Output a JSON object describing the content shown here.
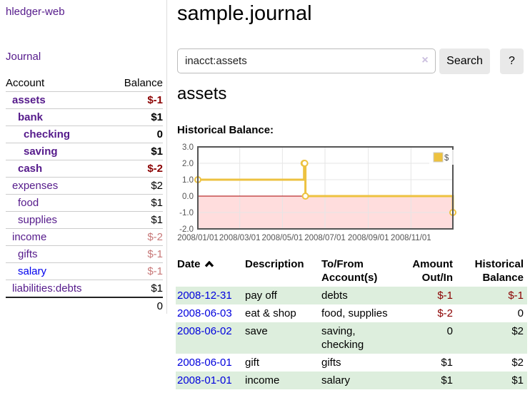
{
  "colors": {
    "accent_purple": "#551a8b",
    "link_blue": "#0000dd",
    "unvisited_link_blue": "#0000ee",
    "negative_strong": "#8b0000",
    "negative_soft": "#c87979",
    "row_stripe": "#ddeedd",
    "series_gold": "#edc240",
    "negative_region_pink": "#ffdddd",
    "zero_line_red": "#aa0000"
  },
  "app": {
    "title": "hledger-web",
    "nav_journal": "Journal"
  },
  "sidebar": {
    "table": {
      "col_account": "Account",
      "col_balance": "Balance",
      "total": "0",
      "rows": [
        {
          "label": "assets",
          "depth": 1,
          "bold": true,
          "balance": "$-1",
          "balance_color": "#8b0000"
        },
        {
          "label": "bank",
          "depth": 2,
          "bold": true,
          "balance": "$1"
        },
        {
          "label": "checking",
          "depth": 3,
          "bold": true,
          "balance": "0"
        },
        {
          "label": "saving",
          "depth": 3,
          "bold": true,
          "balance": "$1"
        },
        {
          "label": "cash",
          "depth": 2,
          "bold": true,
          "balance": "$-2",
          "balance_color": "#8b0000"
        },
        {
          "label": "expenses",
          "depth": 1,
          "bold": false,
          "balance": "$2"
        },
        {
          "label": "food",
          "depth": 2,
          "bold": false,
          "balance": "$1"
        },
        {
          "label": "supplies",
          "depth": 2,
          "bold": false,
          "balance": "$1"
        },
        {
          "label": "income",
          "depth": 1,
          "bold": false,
          "balance": "$-2",
          "balance_color": "#c87979"
        },
        {
          "label": "gifts",
          "depth": 2,
          "bold": false,
          "balance": "$-1",
          "balance_color": "#c87979"
        },
        {
          "label": "salary",
          "depth": 2,
          "bold": false,
          "link_color": "#0000ee",
          "balance": "$-1",
          "balance_color": "#c87979"
        },
        {
          "label": "liabilities:debts",
          "depth": 1,
          "bold": false,
          "balance": "$1"
        }
      ]
    }
  },
  "main": {
    "title": "sample.journal",
    "search": {
      "value": "inacct:assets",
      "clear_icon": "×",
      "search_label": "Search",
      "help_label": "?"
    },
    "account_heading": "assets",
    "chart_heading": "Historical Balance:"
  },
  "chart_data": {
    "type": "line",
    "style": "step",
    "title": "Historical Balance",
    "xlabel": "",
    "ylabel": "",
    "xlim": [
      "2008-01-01",
      "2008-12-31"
    ],
    "ylim": [
      -2,
      3
    ],
    "y_ticks": [
      3,
      2,
      1,
      0,
      -1,
      -2
    ],
    "x_ticks": [
      "2008/01/01",
      "2008/03/01",
      "2008/05/01",
      "2008/07/01",
      "2008/09/01",
      "2008/11/01"
    ],
    "grid": true,
    "legend": {
      "position": "top-right",
      "label": "$"
    },
    "negative_region_color": "#ffdddd",
    "zero_line_color": "#aa0000",
    "series": [
      {
        "name": "$",
        "color": "#edc240",
        "points": [
          [
            "2008-01-01",
            1
          ],
          [
            "2008-06-01",
            2
          ],
          [
            "2008-06-02",
            2
          ],
          [
            "2008-06-03",
            0
          ],
          [
            "2008-12-31",
            -1
          ]
        ]
      }
    ]
  },
  "transactions": {
    "headers": {
      "date": "Date",
      "description": "Description",
      "accounts": "To/From Account(s)",
      "amount": "Amount Out/In",
      "balance": "Historical Balance"
    },
    "rows": [
      {
        "date": "2008-12-31",
        "description": "pay off",
        "accounts": "debts",
        "amount": "$-1",
        "amount_color": "#8b0000",
        "balance": "$-1",
        "balance_color": "#8b0000"
      },
      {
        "date": "2008-06-03",
        "description": "eat & shop",
        "accounts": "food, supplies",
        "amount": "$-2",
        "amount_color": "#8b0000",
        "balance": "0"
      },
      {
        "date": "2008-06-02",
        "description": "save",
        "accounts": "saving, checking",
        "amount": "0",
        "balance": "$2"
      },
      {
        "date": "2008-06-01",
        "description": "gift",
        "accounts": "gifts",
        "amount": "$1",
        "balance": "$2"
      },
      {
        "date": "2008-01-01",
        "description": "income",
        "accounts": "salary",
        "amount": "$1",
        "balance": "$1"
      }
    ]
  }
}
